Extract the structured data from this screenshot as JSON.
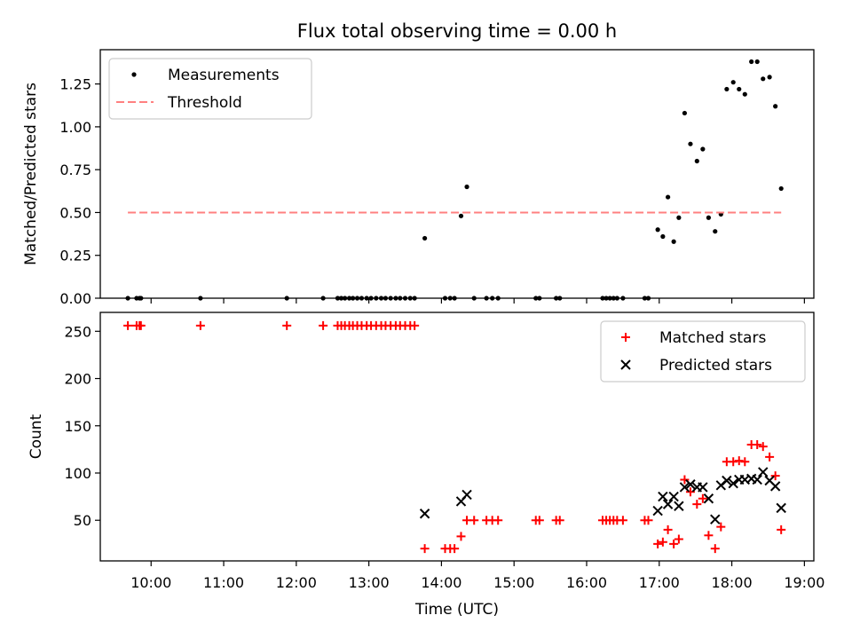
{
  "title": "Flux total observing time = 0.00 h",
  "chart_data": [
    {
      "type": "scatter",
      "panel": "top",
      "ylabel": "Matched/Predicted stars",
      "xlim_hours": [
        9.3,
        19.13
      ],
      "ylim": [
        0,
        1.45
      ],
      "yticks": [
        "0.00",
        "0.25",
        "0.50",
        "0.75",
        "1.00",
        "1.25"
      ],
      "legend_position": "upper-left",
      "series": [
        {
          "name": "Measurements",
          "marker": "dot",
          "color": "#000000",
          "x": [
            9.68,
            9.8,
            9.84,
            9.86,
            10.68,
            11.87,
            12.37,
            12.57,
            12.62,
            12.67,
            12.73,
            12.78,
            12.84,
            12.9,
            12.97,
            13.03,
            13.1,
            13.17,
            13.23,
            13.3,
            13.37,
            13.43,
            13.5,
            13.57,
            13.63,
            13.77,
            14.05,
            14.12,
            14.18,
            14.27,
            14.35,
            14.45,
            14.62,
            14.7,
            14.78,
            15.3,
            15.35,
            15.58,
            15.63,
            16.22,
            16.27,
            16.32,
            16.37,
            16.42,
            16.5,
            16.8,
            16.85,
            16.98,
            17.05,
            17.12,
            17.2,
            17.27,
            17.35,
            17.43,
            17.52,
            17.6,
            17.68,
            17.77,
            17.85,
            17.93,
            18.02,
            18.1,
            18.18,
            18.27,
            18.35,
            18.43,
            18.52,
            18.6,
            18.68
          ],
          "y": [
            0,
            0,
            0,
            0,
            0,
            0,
            0,
            0,
            0,
            0,
            0,
            0,
            0,
            0,
            0,
            0,
            0,
            0,
            0,
            0,
            0,
            0,
            0,
            0,
            0,
            0.35,
            0,
            0,
            0,
            0.48,
            0.65,
            0,
            0,
            0,
            0,
            0,
            0,
            0,
            0,
            0,
            0,
            0,
            0,
            0,
            0,
            0,
            0,
            0.4,
            0.36,
            0.59,
            0.33,
            0.47,
            1.08,
            0.9,
            0.8,
            0.87,
            0.47,
            0.39,
            0.49,
            1.22,
            1.26,
            1.22,
            1.19,
            1.38,
            1.38,
            1.28,
            1.29,
            1.12,
            0.64
          ]
        },
        {
          "name": "Threshold",
          "marker": "dashed-line",
          "color": "#ff8080",
          "x": [
            9.68,
            18.68
          ],
          "y": [
            0.5,
            0.5
          ]
        }
      ]
    },
    {
      "type": "scatter",
      "panel": "bottom",
      "xlabel": "Time (UTC)",
      "ylabel": "Count",
      "xlim_hours": [
        9.3,
        19.13
      ],
      "ylim": [
        7,
        270
      ],
      "yticks": [
        "50",
        "100",
        "150",
        "200",
        "250"
      ],
      "xticks": [
        "10:00",
        "11:00",
        "12:00",
        "13:00",
        "14:00",
        "15:00",
        "16:00",
        "17:00",
        "18:00",
        "19:00"
      ],
      "legend_position": "upper-right",
      "series": [
        {
          "name": "Matched stars",
          "marker": "plus",
          "color": "#ff0000",
          "x": [
            9.68,
            9.8,
            9.84,
            9.86,
            10.68,
            11.87,
            12.37,
            12.57,
            12.62,
            12.67,
            12.73,
            12.78,
            12.84,
            12.9,
            12.97,
            13.03,
            13.1,
            13.17,
            13.23,
            13.3,
            13.37,
            13.43,
            13.5,
            13.57,
            13.63,
            13.77,
            14.05,
            14.12,
            14.18,
            14.27,
            14.35,
            14.45,
            14.62,
            14.7,
            14.78,
            15.3,
            15.35,
            15.58,
            15.63,
            16.22,
            16.27,
            16.32,
            16.37,
            16.42,
            16.5,
            16.8,
            16.85,
            16.98,
            17.05,
            17.12,
            17.2,
            17.27,
            17.35,
            17.43,
            17.52,
            17.6,
            17.68,
            17.77,
            17.85,
            17.93,
            18.02,
            18.1,
            18.18,
            18.27,
            18.35,
            18.43,
            18.52,
            18.6,
            18.68
          ],
          "y": [
            256,
            256,
            256,
            256,
            256,
            256,
            256,
            256,
            256,
            256,
            256,
            256,
            256,
            256,
            256,
            256,
            256,
            256,
            256,
            256,
            256,
            256,
            256,
            256,
            256,
            20,
            20,
            20,
            20,
            33,
            50,
            50,
            50,
            50,
            50,
            50,
            50,
            50,
            50,
            50,
            50,
            50,
            50,
            50,
            50,
            50,
            50,
            25,
            27,
            40,
            25,
            30,
            93,
            80,
            67,
            73,
            34,
            20,
            43,
            112,
            112,
            113,
            112,
            130,
            130,
            128,
            117,
            97,
            40
          ]
        },
        {
          "name": "Predicted stars",
          "marker": "x",
          "color": "#000000",
          "x": [
            13.77,
            14.27,
            14.35,
            16.98,
            17.05,
            17.12,
            17.2,
            17.27,
            17.35,
            17.43,
            17.52,
            17.6,
            17.68,
            17.77,
            17.85,
            17.93,
            18.02,
            18.1,
            18.18,
            18.27,
            18.35,
            18.43,
            18.52,
            18.6,
            18.68
          ],
          "y": [
            57,
            70,
            77,
            60,
            75,
            67,
            75,
            65,
            85,
            88,
            85,
            85,
            73,
            51,
            87,
            92,
            89,
            93,
            93,
            94,
            93,
            101,
            92,
            86,
            63
          ]
        }
      ]
    }
  ]
}
